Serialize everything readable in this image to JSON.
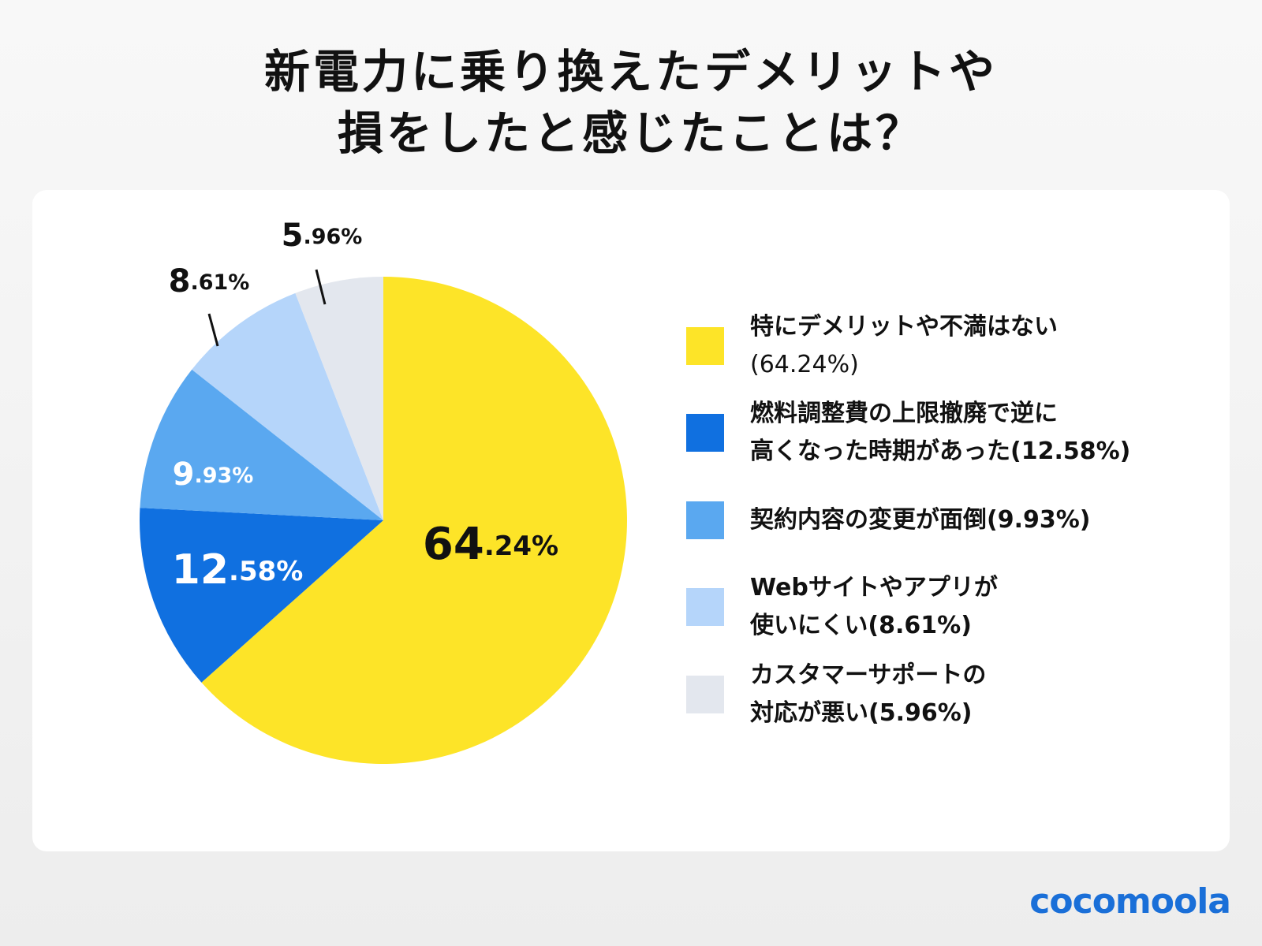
{
  "title": {
    "line1": "新電力に乗り換えたデメリットや",
    "line2": "損をしたと感じたことは？"
  },
  "chart_data": {
    "type": "pie",
    "start": "top, clockwise",
    "categories": [
      "特にデメリットや不満はない",
      "燃料調整費の上限撤廃で逆に高くなった時期があった",
      "契約内容の変更が面倒",
      "Webサイトやアプリが使いにくい",
      "カスタマーサポートの対応が悪い"
    ],
    "values": [
      64.24,
      12.58,
      9.93,
      8.61,
      5.96
    ],
    "unit": "%",
    "colors": [
      "#FDE428",
      "#1070E0",
      "#5AA8F0",
      "#B5D5FA",
      "#E3E7EE"
    ],
    "label_colors": [
      "#111111",
      "#ffffff",
      "#ffffff",
      "#111111",
      "#111111"
    ],
    "data_labels": [
      "64.24%",
      "12.58%",
      "9.93%",
      "8.61%",
      "5.96%"
    ]
  },
  "legend": {
    "position": "right",
    "items": [
      {
        "line1": "特にデメリットや不満はない",
        "line2": "(64.24%)"
      },
      {
        "line1": "燃料調整費の上限撤廃で逆に",
        "line2": "高くなった時期があった(12.58%)"
      },
      {
        "line1": "契約内容の変更が面倒(9.93%)",
        "line2": ""
      },
      {
        "line1": "Webサイトやアプリが",
        "line2": "使いにくい(8.61%)"
      },
      {
        "line1": "カスタマーサポートの",
        "line2": "対応が悪い(5.96%)"
      }
    ]
  },
  "logo": "cocomoola"
}
